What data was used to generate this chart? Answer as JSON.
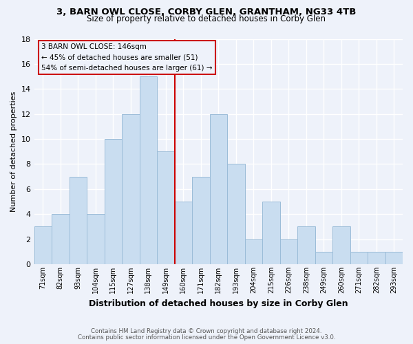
{
  "title1": "3, BARN OWL CLOSE, CORBY GLEN, GRANTHAM, NG33 4TB",
  "title2": "Size of property relative to detached houses in Corby Glen",
  "xlabel": "Distribution of detached houses by size in Corby Glen",
  "ylabel": "Number of detached properties",
  "bar_labels": [
    "71sqm",
    "82sqm",
    "93sqm",
    "104sqm",
    "115sqm",
    "127sqm",
    "138sqm",
    "149sqm",
    "160sqm",
    "171sqm",
    "182sqm",
    "193sqm",
    "204sqm",
    "215sqm",
    "226sqm",
    "238sqm",
    "249sqm",
    "260sqm",
    "271sqm",
    "282sqm",
    "293sqm"
  ],
  "bar_values": [
    3,
    4,
    7,
    4,
    10,
    12,
    15,
    9,
    5,
    7,
    12,
    8,
    2,
    5,
    2,
    3,
    1,
    3,
    1,
    1,
    1
  ],
  "bar_color": "#c9ddf0",
  "bar_edge_color": "#9bbcd8",
  "vline_x": 7.5,
  "vline_color": "#cc0000",
  "annotation_title": "3 BARN OWL CLOSE: 146sqm",
  "annotation_line1": "← 45% of detached houses are smaller (51)",
  "annotation_line2": "54% of semi-detached houses are larger (61) →",
  "annotation_box_edge": "#cc0000",
  "ylim": [
    0,
    18
  ],
  "yticks": [
    0,
    2,
    4,
    6,
    8,
    10,
    12,
    14,
    16,
    18
  ],
  "footnote1": "Contains HM Land Registry data © Crown copyright and database right 2024.",
  "footnote2": "Contains public sector information licensed under the Open Government Licence v3.0.",
  "background_color": "#eef2fa",
  "grid_color": "#ffffff"
}
